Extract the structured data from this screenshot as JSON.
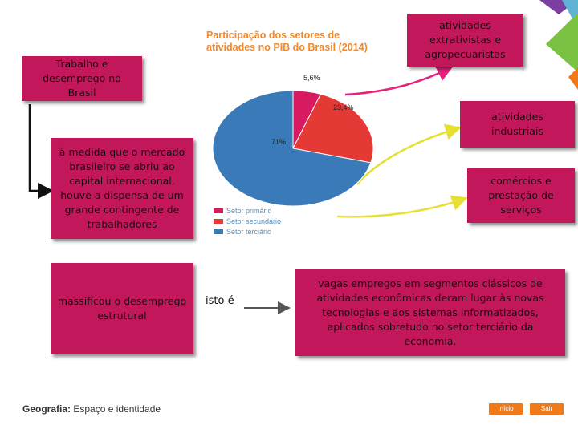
{
  "boxes": {
    "trabalho": "Trabalho e desemprego no Brasil",
    "mercado": "à medida que o mercado brasileiro se abriu ao capital internacional, houve a dispensa de um grande contingente de trabalhadores",
    "massificou": "massificou o desemprego estrutural",
    "extrativistas": "atividades extrativistas e agropecuaristas",
    "industriais": "atividades industriais",
    "comercios": "comércios e prestação de serviços",
    "vagas": "vagas empregos em segmentos clássicos de atividades econômicas deram lugar às novas tecnologias e aos sistemas informatizados, aplicados sobretudo no setor terciário da economia."
  },
  "isto_e": "isto é",
  "chart_data": {
    "type": "pie",
    "title": "Participação dos setores de atividades no PIB do Brasil (2014)",
    "series": [
      {
        "name": "Setor primário",
        "value": 5.6,
        "label": "5,6%",
        "color": "#d81b60"
      },
      {
        "name": "Setor secundário",
        "value": 23.4,
        "label": "23,4%",
        "color": "#e53935"
      },
      {
        "name": "Setor terciário",
        "value": 71,
        "label": "71%",
        "color": "#3a7ab8"
      }
    ]
  },
  "footer": {
    "subject": "Geografia:",
    "book": "Espaço e identidade"
  },
  "nav": {
    "inicio": "Início",
    "sair": "Sair"
  },
  "colors": {
    "box": "#c2185b",
    "arrow_yellow": "#e8e030",
    "arrow_pink": "#e8207a",
    "brand_green": "#7cc242",
    "brand_purple": "#7b3fa0",
    "nav_orange": "#f07a1a"
  }
}
